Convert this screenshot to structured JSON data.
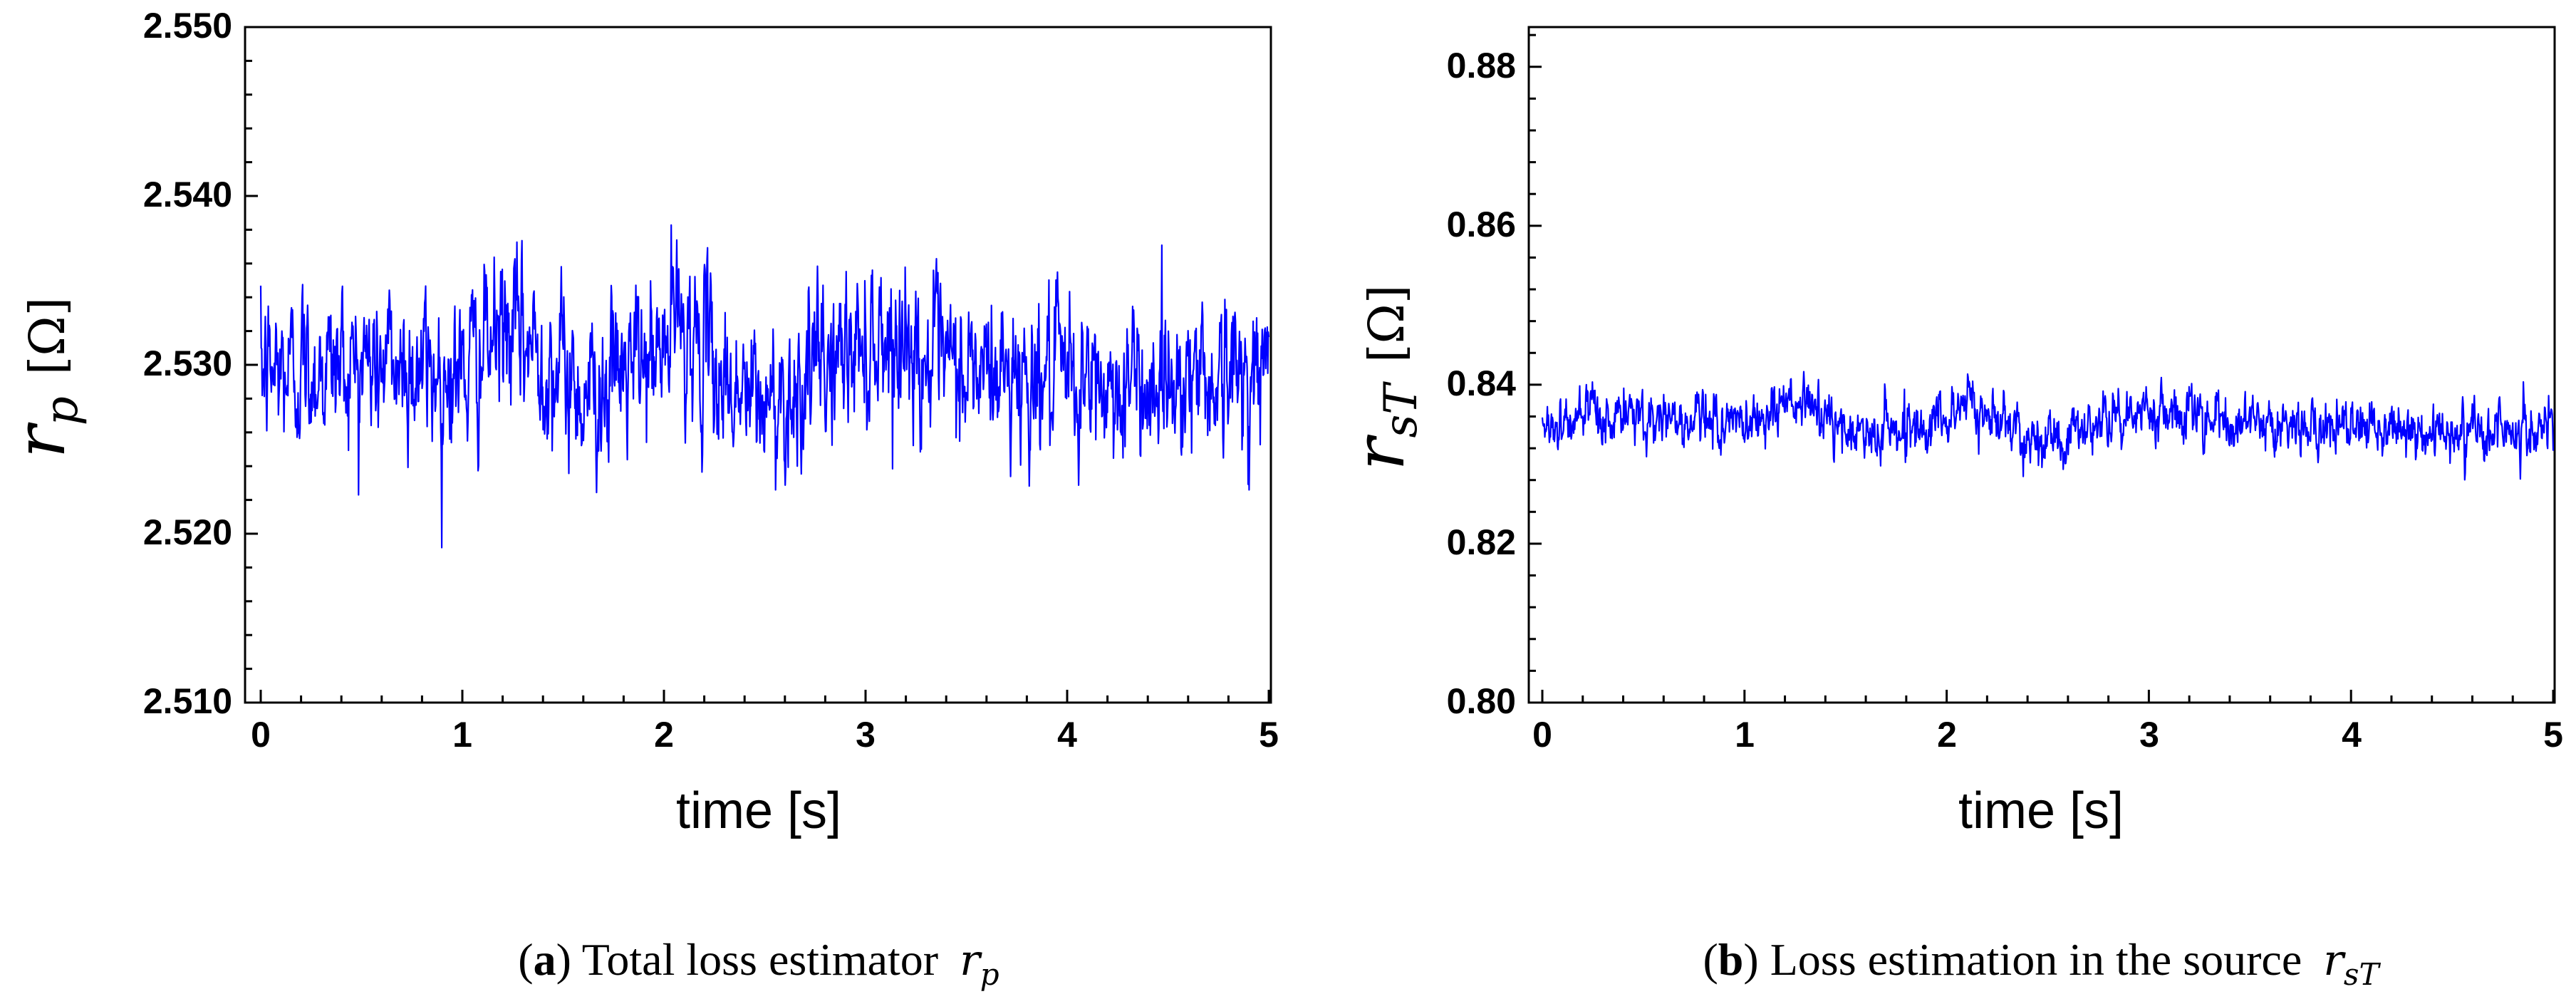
{
  "chart_data": [
    {
      "type": "line",
      "title": "",
      "xlabel": "time [s]",
      "ylabel": {
        "symbol": "r",
        "sub": "p",
        "unit": "[Ω]"
      },
      "xlim": [
        0,
        5
      ],
      "ylim": [
        2.51,
        2.55
      ],
      "x_ticks": [
        "0",
        "1",
        "2",
        "3",
        "4",
        "5"
      ],
      "y_ticks": [
        "2.510",
        "2.520",
        "2.530",
        "2.540",
        "2.550"
      ],
      "grid": false,
      "series": [
        {
          "name": "r_p",
          "color": "#0000ff",
          "n_samples": 2000,
          "baseline": 2.5295,
          "noise_std": 0.0022,
          "trend": [
            [
              0,
              2.5295
            ],
            [
              0.5,
              2.5302
            ],
            [
              1.0,
              2.5295
            ],
            [
              1.2,
              2.532
            ],
            [
              1.35,
              2.531
            ],
            [
              1.6,
              2.5285
            ],
            [
              2.0,
              2.5305
            ],
            [
              2.05,
              2.533
            ],
            [
              2.3,
              2.529
            ],
            [
              2.5,
              2.5275
            ],
            [
              2.8,
              2.53
            ],
            [
              3.1,
              2.532
            ],
            [
              3.4,
              2.5295
            ],
            [
              3.8,
              2.5295
            ],
            [
              4.2,
              2.5285
            ],
            [
              4.6,
              2.5295
            ],
            [
              5.0,
              2.5295
            ]
          ]
        }
      ],
      "caption": {
        "letter": "a",
        "text": " Total loss estimator ",
        "symbol": "r",
        "sub": "p"
      }
    },
    {
      "type": "line",
      "title": "",
      "xlabel": "time [s]",
      "ylabel": {
        "symbol": "r",
        "sub": "sT",
        "unit": "[Ω]"
      },
      "xlim": [
        0,
        5
      ],
      "ylim": [
        0.8,
        0.885
      ],
      "x_ticks": [
        "0",
        "1",
        "2",
        "3",
        "4",
        "5"
      ],
      "y_ticks": [
        "0.80",
        "0.82",
        "0.84",
        "0.86",
        "0.88"
      ],
      "grid": false,
      "series": [
        {
          "name": "r_sT",
          "color": "#0000ff",
          "n_samples": 2000,
          "baseline": 0.835,
          "noise_std": 0.0017,
          "trend": [
            [
              0,
              0.835
            ],
            [
              0.5,
              0.836
            ],
            [
              1.0,
              0.835
            ],
            [
              1.2,
              0.8375
            ],
            [
              1.35,
              0.837
            ],
            [
              1.5,
              0.8335
            ],
            [
              2.0,
              0.8355
            ],
            [
              2.05,
              0.838
            ],
            [
              2.3,
              0.835
            ],
            [
              2.5,
              0.833
            ],
            [
              2.8,
              0.8355
            ],
            [
              3.1,
              0.8375
            ],
            [
              3.4,
              0.835
            ],
            [
              3.8,
              0.8345
            ],
            [
              4.2,
              0.834
            ],
            [
              4.6,
              0.8345
            ],
            [
              5.0,
              0.8345
            ]
          ]
        }
      ],
      "caption": {
        "letter": "b",
        "text": " Loss estimation in the source ",
        "symbol": "r",
        "sub": "sT"
      }
    }
  ]
}
